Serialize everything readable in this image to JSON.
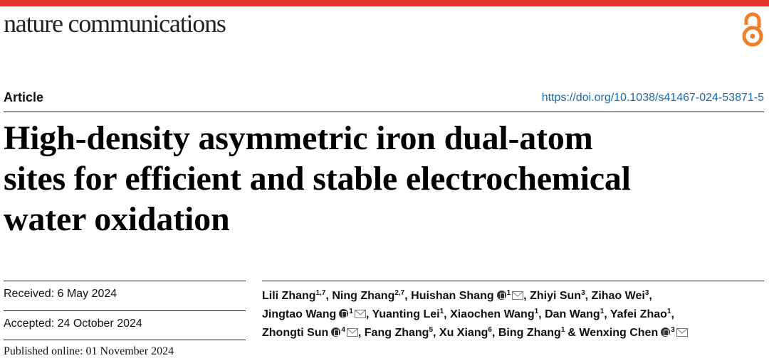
{
  "header": {
    "journal": "nature communications"
  },
  "article": {
    "type": "Article",
    "doi": "https://doi.org/10.1038/s41467-024-53871-5",
    "title_lines": [
      "High-density asymmetric iron dual-atom",
      "sites for efficient and stable electrochemical",
      "water oxidation"
    ],
    "received": "Received: 6 May 2024",
    "accepted": "Accepted: 24 October 2024",
    "published": "Published online: 01 November 2024",
    "authors": [
      {
        "name": "Lili Zhang",
        "affiliations": "1,7",
        "separator": ","
      },
      {
        "name": "Ning Zhang",
        "affiliations": "2,7",
        "separator": ","
      },
      {
        "name": "Huishan Shang",
        "affiliations": "1",
        "separator": ","
      },
      {
        "name": "Zhiyi Sun",
        "affiliations": "3",
        "separator": ","
      },
      {
        "name": "Zihao Wei",
        "affiliations": "3",
        "separator": ","
      },
      {
        "name": "Jingtao Wang",
        "affiliations": "1",
        "separator": ","
      },
      {
        "name": "Yuanting Lei",
        "affiliations": "1",
        "separator": ","
      },
      {
        "name": "Xiaochen Wang",
        "affiliations": "1",
        "separator": ","
      },
      {
        "name": "Dan Wang",
        "affiliations": "1",
        "separator": ","
      },
      {
        "name": "Yafei Zhao",
        "affiliations": "1",
        "separator": ","
      },
      {
        "name": "Zhongti Sun",
        "affiliations": "4",
        "separator": ","
      },
      {
        "name": "Fang Zhang",
        "affiliations": "5",
        "separator": ","
      },
      {
        "name": "Xu Xiang",
        "affiliations": "6",
        "separator": ","
      },
      {
        "name": "Bing Zhang",
        "affiliations": "1",
        "separator": "&"
      },
      {
        "name": "Wenxing Chen",
        "affiliations": "3"
      }
    ]
  }
}
